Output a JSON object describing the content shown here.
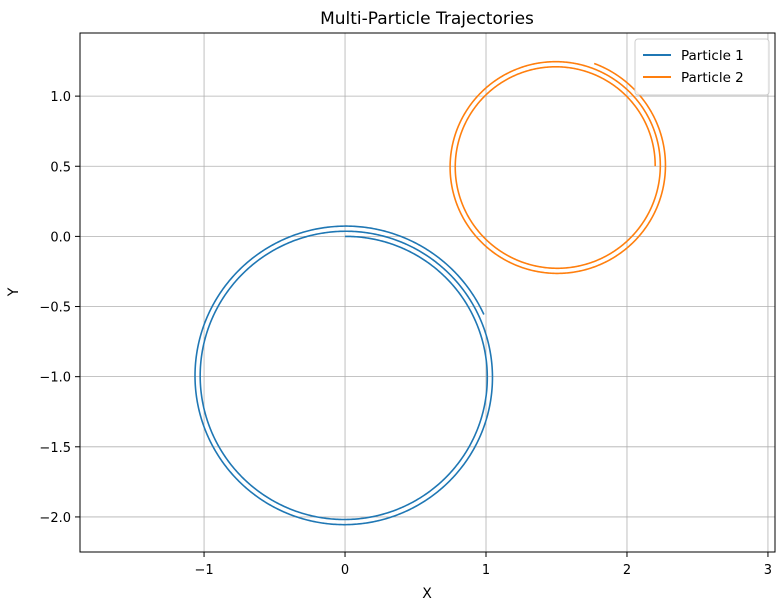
{
  "chart_data": {
    "type": "line",
    "title": "Multi-Particle Trajectories",
    "xlabel": "X",
    "ylabel": "Y",
    "xlim": [
      -1.88,
      3.05
    ],
    "ylim": [
      -2.25,
      1.45
    ],
    "xticks": [
      -1,
      0,
      1,
      2,
      3
    ],
    "xtick_labels": [
      "−1",
      "0",
      "1",
      "2",
      "3"
    ],
    "yticks": [
      -2.0,
      -1.5,
      -1.0,
      -0.5,
      0.0,
      0.5,
      1.0
    ],
    "ytick_labels": [
      "−2.0",
      "−1.5",
      "−1.0",
      "−0.5",
      "0.0",
      "0.5",
      "1.0"
    ],
    "grid": true,
    "legend_position": "top-right",
    "series": [
      {
        "name": "Particle 1",
        "color": "#1f77b4",
        "shape": "spiral",
        "center": [
          0.0,
          -1.0
        ],
        "radius_start": 1.0,
        "radius_end": 1.08,
        "start_point": [
          0.0,
          0.0
        ],
        "end_point": [
          1.0,
          -0.55
        ],
        "turns": 2.8,
        "direction": "clockwise"
      },
      {
        "name": "Particle 2",
        "color": "#ff7f0e",
        "shape": "spiral",
        "center": [
          1.5,
          0.5
        ],
        "radius_start": 0.7,
        "radius_end": 0.78,
        "start_point": [
          2.2,
          0.5
        ],
        "end_point": [
          1.77,
          1.24
        ],
        "turns": 2.8,
        "direction": "counterclockwise"
      }
    ]
  }
}
